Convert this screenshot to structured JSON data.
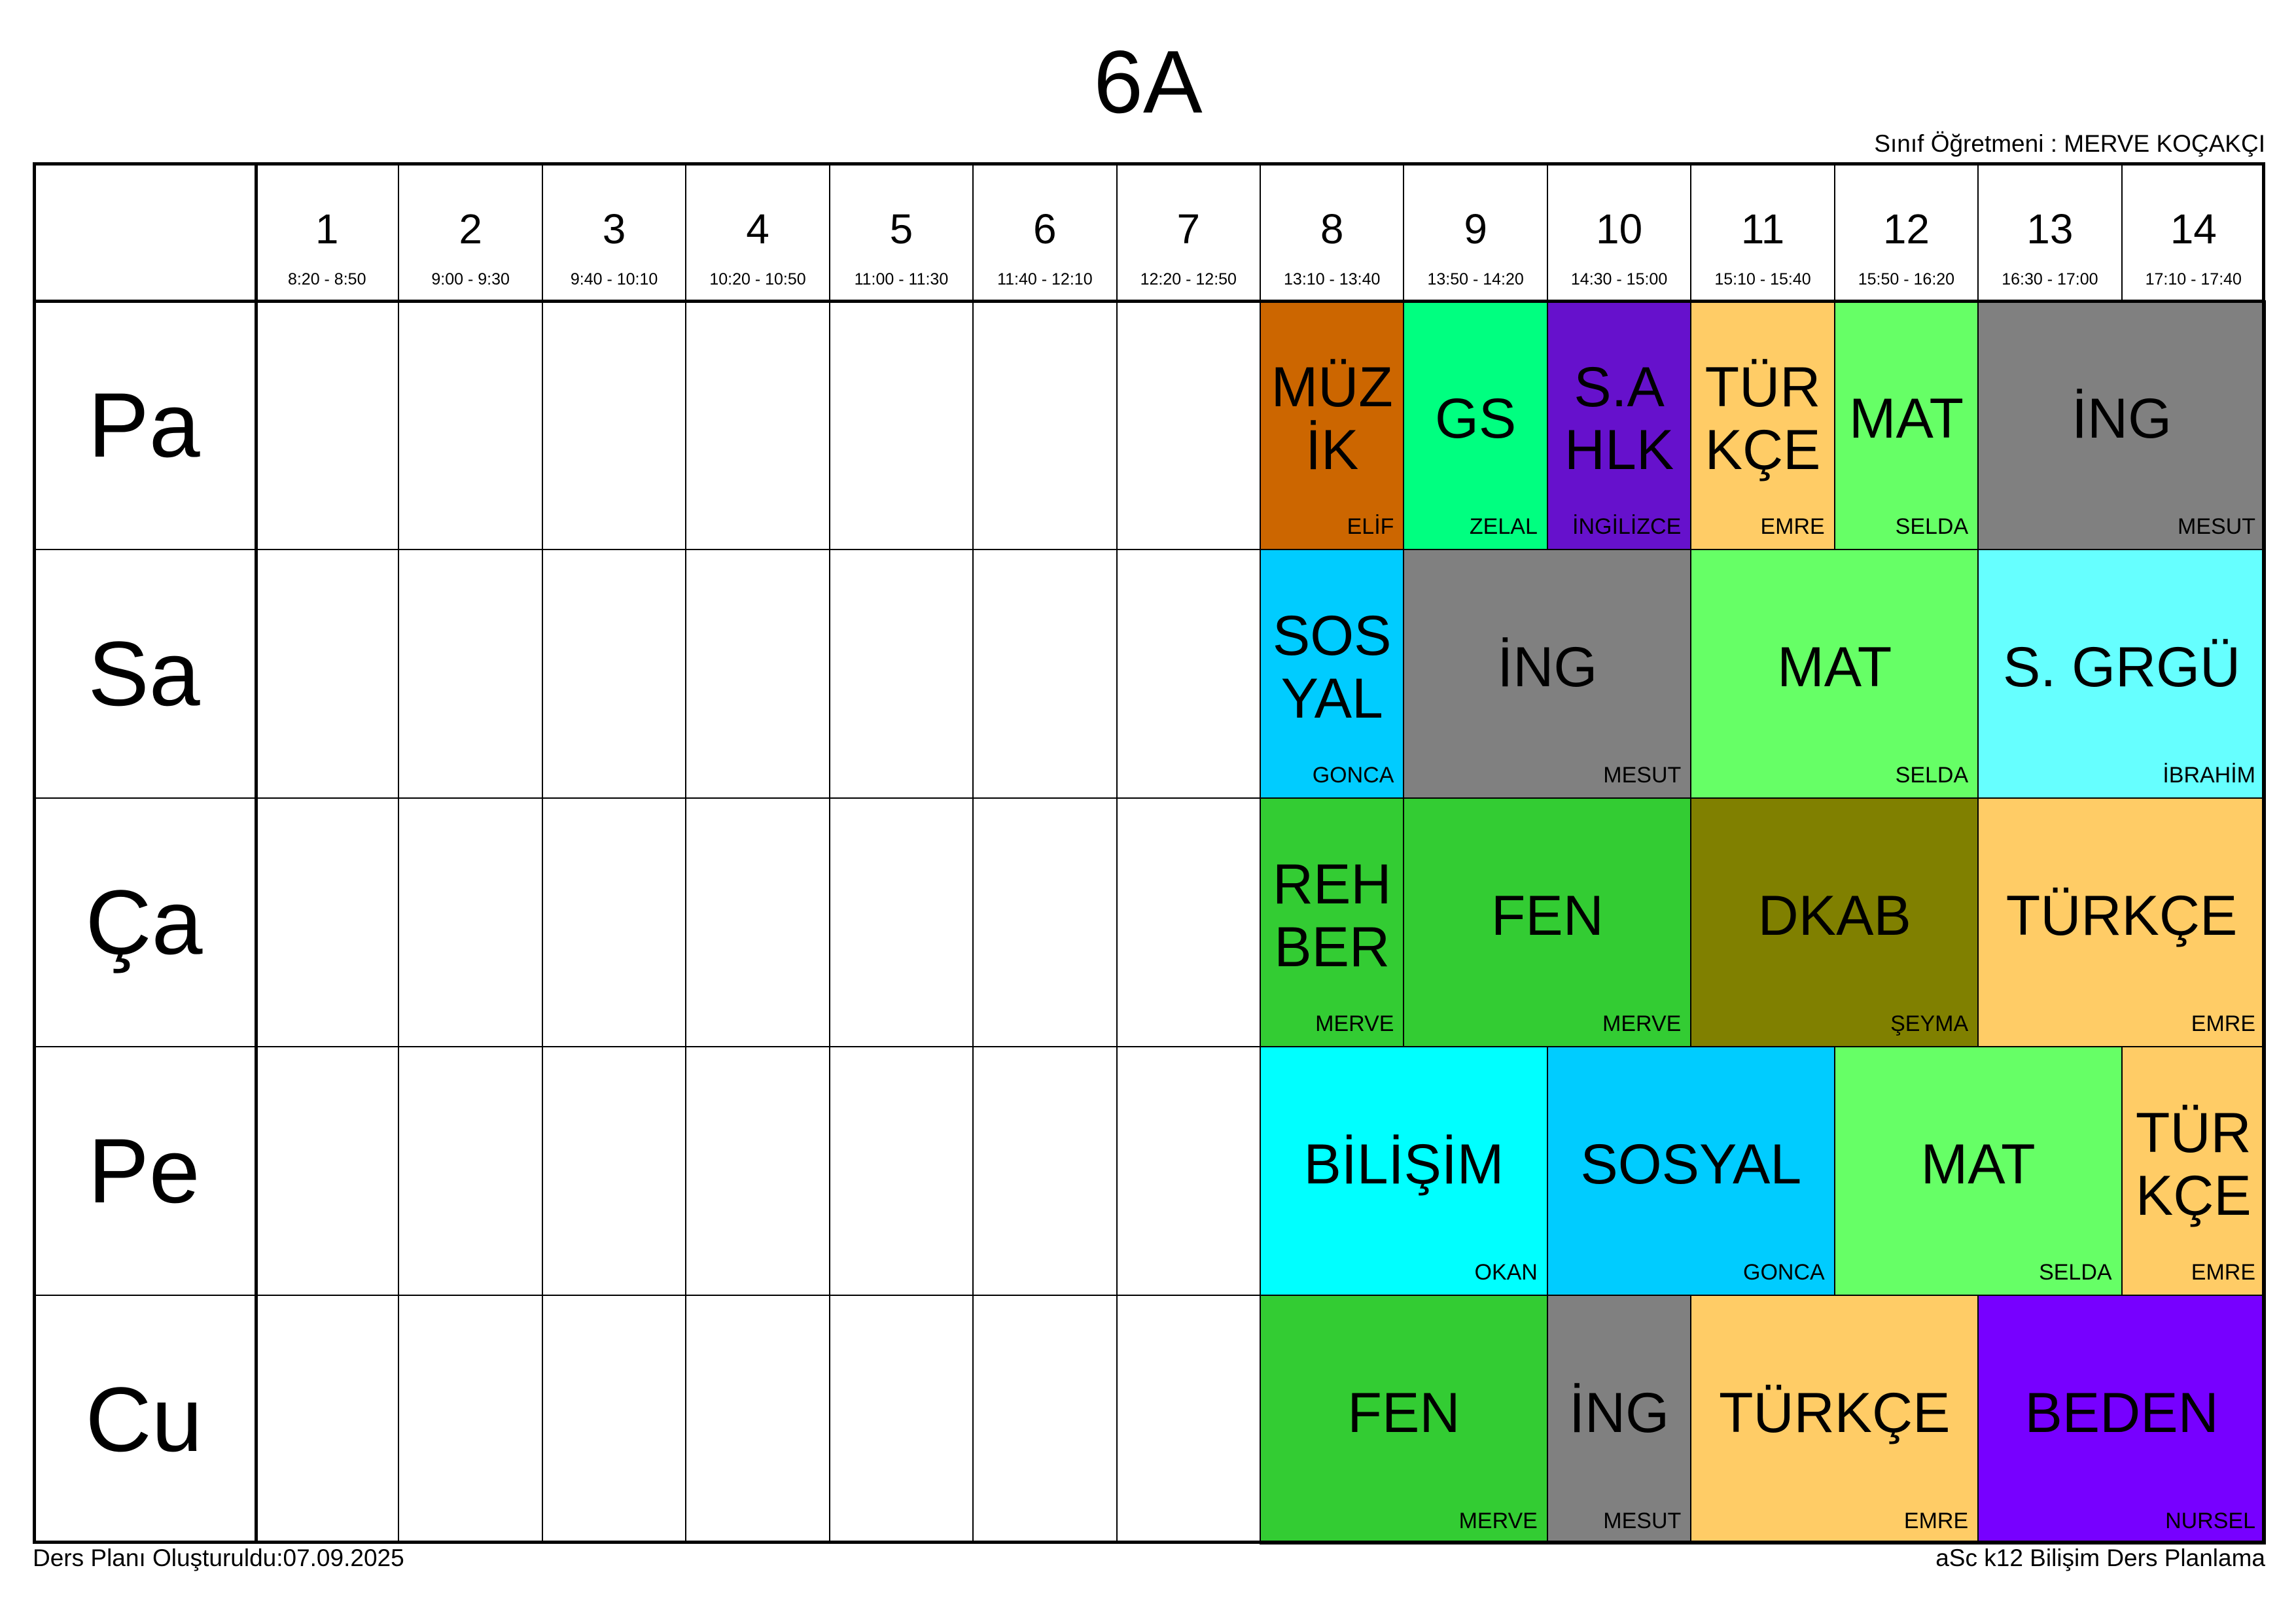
{
  "title": "6A",
  "class_teacher": "Sınıf Öğretmeni : MERVE KOÇAKÇI",
  "footer_left": "Ders Planı Oluşturuldu:07.09.2025",
  "footer_right": "aSc k12 Bilişim Ders Planlama",
  "periods": [
    {
      "num": "1",
      "time": "8:20 - 8:50"
    },
    {
      "num": "2",
      "time": "9:00 - 9:30"
    },
    {
      "num": "3",
      "time": "9:40 - 10:10"
    },
    {
      "num": "4",
      "time": "10:20 - 10:50"
    },
    {
      "num": "5",
      "time": "11:00 - 11:30"
    },
    {
      "num": "6",
      "time": "11:40 - 12:10"
    },
    {
      "num": "7",
      "time": "12:20 - 12:50"
    },
    {
      "num": "8",
      "time": "13:10 - 13:40"
    },
    {
      "num": "9",
      "time": "13:50 - 14:20"
    },
    {
      "num": "10",
      "time": "14:30 - 15:00"
    },
    {
      "num": "11",
      "time": "15:10 - 15:40"
    },
    {
      "num": "12",
      "time": "15:50 - 16:20"
    },
    {
      "num": "13",
      "time": "16:30 - 17:00"
    },
    {
      "num": "14",
      "time": "17:10 - 17:40"
    }
  ],
  "days": [
    "Pa",
    "Sa",
    "Ça",
    "Pe",
    "Cu"
  ],
  "lessons": [
    {
      "day": 0,
      "start": 8,
      "span": 1,
      "subject": "MÜZ\nİK",
      "teacher": "ELİF",
      "color": "#CC6600"
    },
    {
      "day": 0,
      "start": 9,
      "span": 1,
      "subject": "GS",
      "teacher": "ZELAL",
      "color": "#00FF80"
    },
    {
      "day": 0,
      "start": 10,
      "span": 1,
      "subject": "S.A\nHLK",
      "teacher": "İNGİLİZCE",
      "color": "#6611CC"
    },
    {
      "day": 0,
      "start": 11,
      "span": 1,
      "subject": "TÜR\nKÇE",
      "teacher": "EMRE",
      "color": "#FFCC66"
    },
    {
      "day": 0,
      "start": 12,
      "span": 1,
      "subject": "MAT",
      "teacher": "SELDA",
      "color": "#66FF66"
    },
    {
      "day": 0,
      "start": 13,
      "span": 2,
      "subject": "İNG",
      "teacher": "MESUT",
      "color": "#808080"
    },
    {
      "day": 1,
      "start": 8,
      "span": 1,
      "subject": "SOS\nYAL",
      "teacher": "GONCA",
      "color": "#00CCFF"
    },
    {
      "day": 1,
      "start": 9,
      "span": 2,
      "subject": "İNG",
      "teacher": "MESUT",
      "color": "#808080"
    },
    {
      "day": 1,
      "start": 11,
      "span": 2,
      "subject": "MAT",
      "teacher": "SELDA",
      "color": "#66FF66"
    },
    {
      "day": 1,
      "start": 13,
      "span": 2,
      "subject": "S. GRGÜ",
      "teacher": "İBRAHİM",
      "color": "#66FFFF"
    },
    {
      "day": 2,
      "start": 8,
      "span": 1,
      "subject": "REH\nBER",
      "teacher": "MERVE",
      "color": "#33CC33"
    },
    {
      "day": 2,
      "start": 9,
      "span": 2,
      "subject": "FEN",
      "teacher": "MERVE",
      "color": "#33CC33"
    },
    {
      "day": 2,
      "start": 11,
      "span": 2,
      "subject": "DKAB",
      "teacher": "ŞEYMA",
      "color": "#808000"
    },
    {
      "day": 2,
      "start": 13,
      "span": 2,
      "subject": "TÜRKÇE",
      "teacher": "EMRE",
      "color": "#FFCC66"
    },
    {
      "day": 3,
      "start": 8,
      "span": 2,
      "subject": "BİLİŞİM",
      "teacher": "OKAN",
      "color": "#00FFFF"
    },
    {
      "day": 3,
      "start": 10,
      "span": 2,
      "subject": "SOSYAL",
      "teacher": "GONCA",
      "color": "#00CCFF"
    },
    {
      "day": 3,
      "start": 12,
      "span": 2,
      "subject": "MAT",
      "teacher": "SELDA",
      "color": "#66FF66"
    },
    {
      "day": 3,
      "start": 14,
      "span": 1,
      "subject": "TÜR\nKÇE",
      "teacher": "EMRE",
      "color": "#FFCC66"
    },
    {
      "day": 4,
      "start": 8,
      "span": 2,
      "subject": "FEN",
      "teacher": "MERVE",
      "color": "#33CC33"
    },
    {
      "day": 4,
      "start": 10,
      "span": 1,
      "subject": "İNG",
      "teacher": "MESUT",
      "color": "#808080"
    },
    {
      "day": 4,
      "start": 11,
      "span": 2,
      "subject": "TÜRKÇE",
      "teacher": "EMRE",
      "color": "#FFCC66"
    },
    {
      "day": 4,
      "start": 13,
      "span": 2,
      "subject": "BEDEN",
      "teacher": "NURSEL",
      "color": "#7700FF"
    }
  ]
}
